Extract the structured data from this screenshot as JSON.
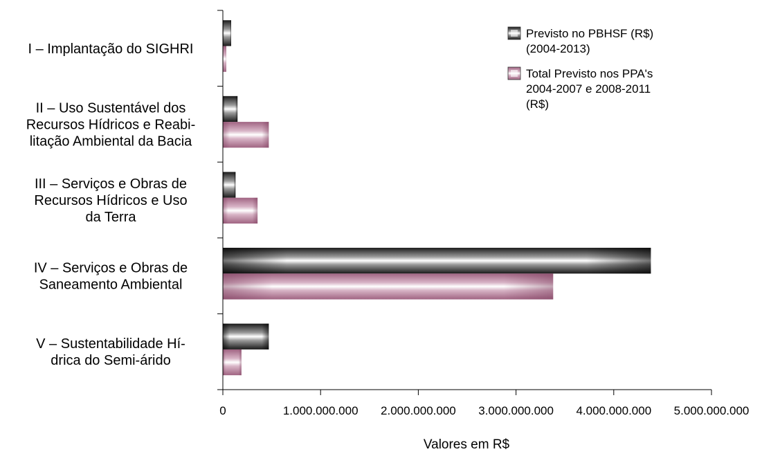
{
  "chart_data": {
    "type": "bar",
    "orientation": "horizontal",
    "categories": [
      "I – Implantação do SIGHRI",
      "II – Uso Sustentável dos Recursos Hídricos e Reabilitação Ambiental da Bacia",
      "III – Serviços e Obras de Recursos Hídricos e Uso da Terra",
      "IV – Serviços e Obras de Saneamento Ambiental",
      "V – Sustentabilidade Hídrica do Semi-árido"
    ],
    "category_label_lines": [
      [
        "I – Implantação do SIGHRI"
      ],
      [
        "II – Uso Sustentável dos",
        "Recursos Hídricos e Reabi-",
        "litação Ambiental da Bacia"
      ],
      [
        "III – Serviços e Obras de",
        "Recursos Hídricos e Uso",
        "da Terra"
      ],
      [
        "IV – Serviços e Obras de",
        "Saneamento Ambiental"
      ],
      [
        "V – Sustentabilidade Hí-",
        "drica do Semi-árido"
      ]
    ],
    "series": [
      {
        "name": "Previsto no PBHSF (R$) (2004-2013)",
        "name_lines": [
          "Previsto no PBHSF (R$)",
          "(2004-2013)"
        ],
        "color": "#808080",
        "values": [
          85000000,
          150000000,
          130000000,
          4380000000,
          470000000
        ]
      },
      {
        "name": "Total Previsto nos PPA's 2004-2007 e 2008-2011 (R$)",
        "name_lines": [
          "Total Previsto nos PPA's",
          "2004-2007 e 2008-2011",
          "(R$)"
        ],
        "color": "#c8a0b4",
        "values": [
          35000000,
          470000000,
          355000000,
          3380000000,
          190000000
        ]
      }
    ],
    "xlim": [
      0,
      5000000000
    ],
    "xticks": [
      0,
      1000000000,
      2000000000,
      3000000000,
      4000000000,
      5000000000
    ],
    "xtick_labels": [
      "0",
      "1.000.000.000",
      "2.000.000.000",
      "3.000.000.000",
      "4.000.000.000",
      "5.000.000.000"
    ],
    "xlabel": "Valores em R$",
    "ylabel": "",
    "title": "",
    "grid": false,
    "legend_position": "top-right"
  }
}
